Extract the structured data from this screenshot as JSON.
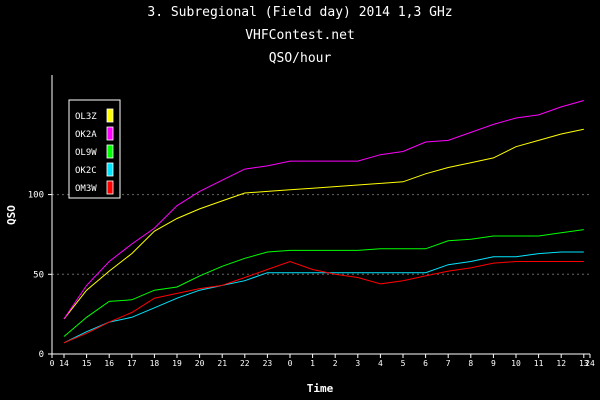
{
  "chart_data": {
    "type": "line",
    "title": "3. Subregional (Field day) 2014 1,3 GHz",
    "subtitle": "VHFContest.net",
    "subtitle2": "QSO/hour",
    "xlabel": "Time",
    "ylabel": "QSO",
    "x_tick_labels": [
      "0",
      "14",
      "15",
      "16",
      "17",
      "18",
      "19",
      "20",
      "21",
      "22",
      "23",
      "0",
      "1",
      "2",
      "3",
      "4",
      "5",
      "6",
      "7",
      "8",
      "9",
      "10",
      "11",
      "12",
      "13",
      "24"
    ],
    "y_ticks": [
      0,
      50,
      100
    ],
    "ylim": [
      0,
      175
    ],
    "grid": "horizontal dashed",
    "legend_position": "top-left",
    "x": [
      "14",
      "15",
      "16",
      "17",
      "18",
      "19",
      "20",
      "21",
      "22",
      "23",
      "0",
      "1",
      "2",
      "3",
      "4",
      "5",
      "6",
      "7",
      "8",
      "9",
      "10",
      "11",
      "12",
      "13"
    ],
    "series": [
      {
        "name": "OL3Z",
        "color": "#ffff00",
        "values": [
          22,
          40,
          52,
          63,
          77,
          85,
          91,
          96,
          101,
          102,
          103,
          104,
          105,
          106,
          107,
          108,
          113,
          117,
          120,
          123,
          130,
          134,
          138,
          141
        ]
      },
      {
        "name": "OK2A",
        "color": "#ff00ff",
        "values": [
          22,
          43,
          58,
          69,
          79,
          93,
          102,
          109,
          116,
          118,
          121,
          121,
          121,
          121,
          125,
          127,
          133,
          134,
          139,
          144,
          148,
          150,
          155,
          159
        ]
      },
      {
        "name": "OL9W",
        "color": "#00ff00",
        "values": [
          11,
          23,
          33,
          34,
          40,
          42,
          49,
          55,
          60,
          64,
          65,
          65,
          65,
          65,
          66,
          66,
          66,
          71,
          72,
          74,
          74,
          74,
          76,
          78
        ]
      },
      {
        "name": "OK2C",
        "color": "#00e5ff",
        "values": [
          7,
          14,
          20,
          23,
          29,
          35,
          40,
          43,
          46,
          51,
          51,
          51,
          51,
          51,
          51,
          51,
          51,
          56,
          58,
          61,
          61,
          63,
          64,
          64
        ]
      },
      {
        "name": "OM3W",
        "color": "#ff0000",
        "values": [
          7,
          13,
          20,
          26,
          35,
          38,
          41,
          43,
          48,
          53,
          58,
          53,
          50,
          48,
          44,
          46,
          49,
          52,
          54,
          57,
          58,
          58,
          58,
          58
        ]
      }
    ]
  }
}
